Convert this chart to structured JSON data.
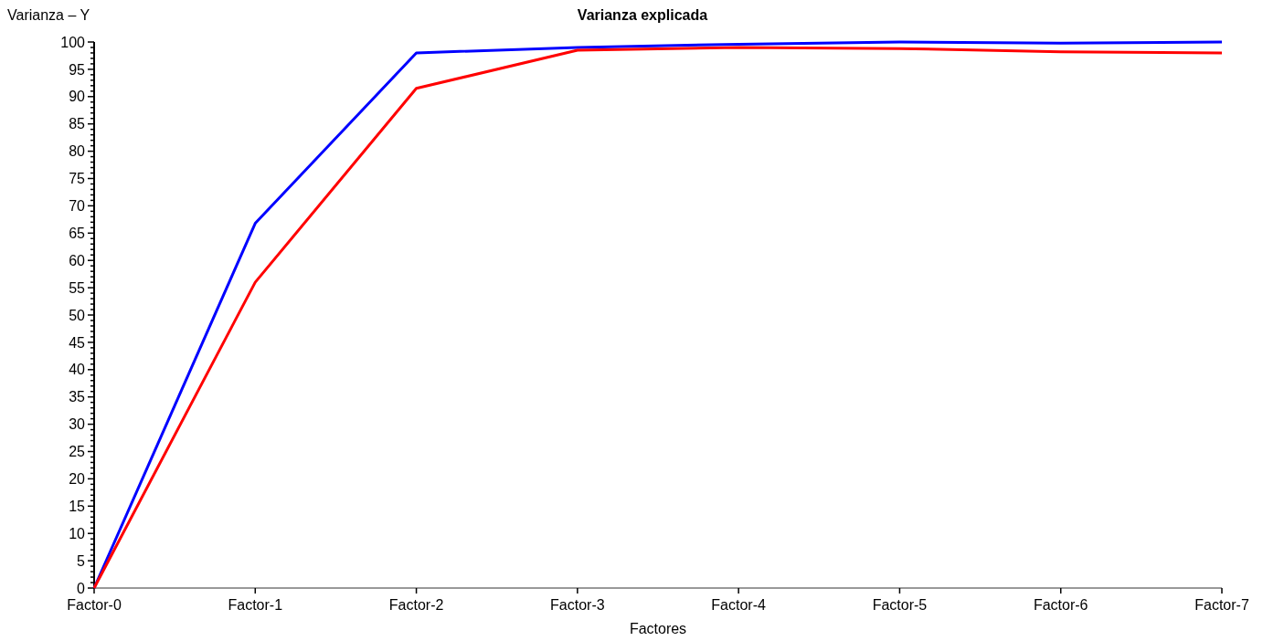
{
  "chart_data": {
    "type": "line",
    "title": "Varianza explicada",
    "xlabel": "Factores",
    "ylabel": "Varianza – Y",
    "categories": [
      "Factor-0",
      "Factor-1",
      "Factor-2",
      "Factor-3",
      "Factor-4",
      "Factor-5",
      "Factor-6",
      "Factor-7"
    ],
    "series": [
      {
        "color": "#0000ff",
        "values": [
          0,
          66.8,
          98,
          99,
          99.6,
          100,
          99.8,
          100
        ]
      },
      {
        "color": "#ff0000",
        "values": [
          0,
          56,
          91.5,
          98.5,
          99,
          98.8,
          98.2,
          98
        ]
      }
    ],
    "ylim": [
      0,
      100
    ],
    "yticks": [
      0,
      {
        "value": 1,
        "label": null
      },
      {
        "value": 2,
        "label": null
      },
      {
        "value": 3,
        "label": null
      },
      {
        "value": 4,
        "label": null
      },
      5,
      {
        "value": 6,
        "label": null
      },
      {
        "value": 7,
        "label": null
      },
      {
        "value": 8,
        "label": null
      },
      {
        "value": 9,
        "label": null
      },
      10,
      {
        "value": 11,
        "label": null
      },
      {
        "value": 12,
        "label": null
      },
      {
        "value": 13,
        "label": null
      },
      {
        "value": 14,
        "label": null
      },
      15,
      {
        "value": 16,
        "label": null
      },
      {
        "value": 17,
        "label": null
      },
      {
        "value": 18,
        "label": null
      },
      {
        "value": 19,
        "label": null
      },
      20,
      {
        "value": 21,
        "label": null
      },
      {
        "value": 22,
        "label": null
      },
      {
        "value": 23,
        "label": null
      },
      {
        "value": 24,
        "label": null
      },
      25,
      {
        "value": 26,
        "label": null
      },
      {
        "value": 27,
        "label": null
      },
      {
        "value": 28,
        "label": null
      },
      {
        "value": 29,
        "label": null
      },
      30,
      {
        "value": 31,
        "label": null
      },
      {
        "value": 32,
        "label": null
      },
      {
        "value": 33,
        "label": null
      },
      {
        "value": 34,
        "label": null
      },
      35,
      {
        "value": 36,
        "label": null
      },
      {
        "value": 37,
        "label": null
      },
      {
        "value": 38,
        "label": null
      },
      {
        "value": 39,
        "label": null
      },
      40,
      {
        "value": 41,
        "label": null
      },
      {
        "value": 42,
        "label": null
      },
      {
        "value": 43,
        "label": null
      },
      {
        "value": 44,
        "label": null
      },
      45,
      {
        "value": 46,
        "label": null
      },
      {
        "value": 47,
        "label": null
      },
      {
        "value": 48,
        "label": null
      },
      {
        "value": 49,
        "label": null
      },
      50,
      {
        "value": 51,
        "label": null
      },
      {
        "value": 52,
        "label": null
      },
      {
        "value": 53,
        "label": null
      },
      {
        "value": 54,
        "label": null
      },
      55,
      {
        "value": 56,
        "label": null
      },
      {
        "value": 57,
        "label": null
      },
      {
        "value": 58,
        "label": null
      },
      {
        "value": 59,
        "label": null
      },
      60,
      {
        "value": 61,
        "label": null
      },
      {
        "value": 62,
        "label": null
      },
      {
        "value": 63,
        "label": null
      },
      {
        "value": 64,
        "label": null
      },
      65,
      {
        "value": 66,
        "label": null
      },
      {
        "value": 67,
        "label": null
      },
      {
        "value": 68,
        "label": null
      },
      {
        "value": 69,
        "label": null
      },
      70,
      {
        "value": 71,
        "label": null
      },
      {
        "value": 72,
        "label": null
      },
      {
        "value": 73,
        "label": null
      },
      {
        "value": 74,
        "label": null
      },
      75,
      {
        "value": 76,
        "label": null
      },
      {
        "value": 77,
        "label": null
      },
      {
        "value": 78,
        "label": null
      },
      {
        "value": 79,
        "label": null
      },
      80,
      {
        "value": 81,
        "label": null
      },
      {
        "value": 82,
        "label": null
      },
      {
        "value": 83,
        "label": null
      },
      {
        "value": 84,
        "label": null
      },
      85,
      {
        "value": 86,
        "label": null
      },
      {
        "value": 87,
        "label": null
      },
      {
        "value": 88,
        "label": null
      },
      {
        "value": 89,
        "label": null
      },
      90,
      {
        "value": 91,
        "label": null
      },
      {
        "value": 92,
        "label": null
      },
      {
        "value": 93,
        "label": null
      },
      {
        "value": 94,
        "label": null
      },
      95,
      {
        "value": 96,
        "label": null
      },
      {
        "value": 97,
        "label": null
      },
      {
        "value": 98,
        "label": null
      },
      {
        "value": 99,
        "label": null
      },
      100
    ],
    "grid": false,
    "marker": "none",
    "line_style": "solid"
  }
}
